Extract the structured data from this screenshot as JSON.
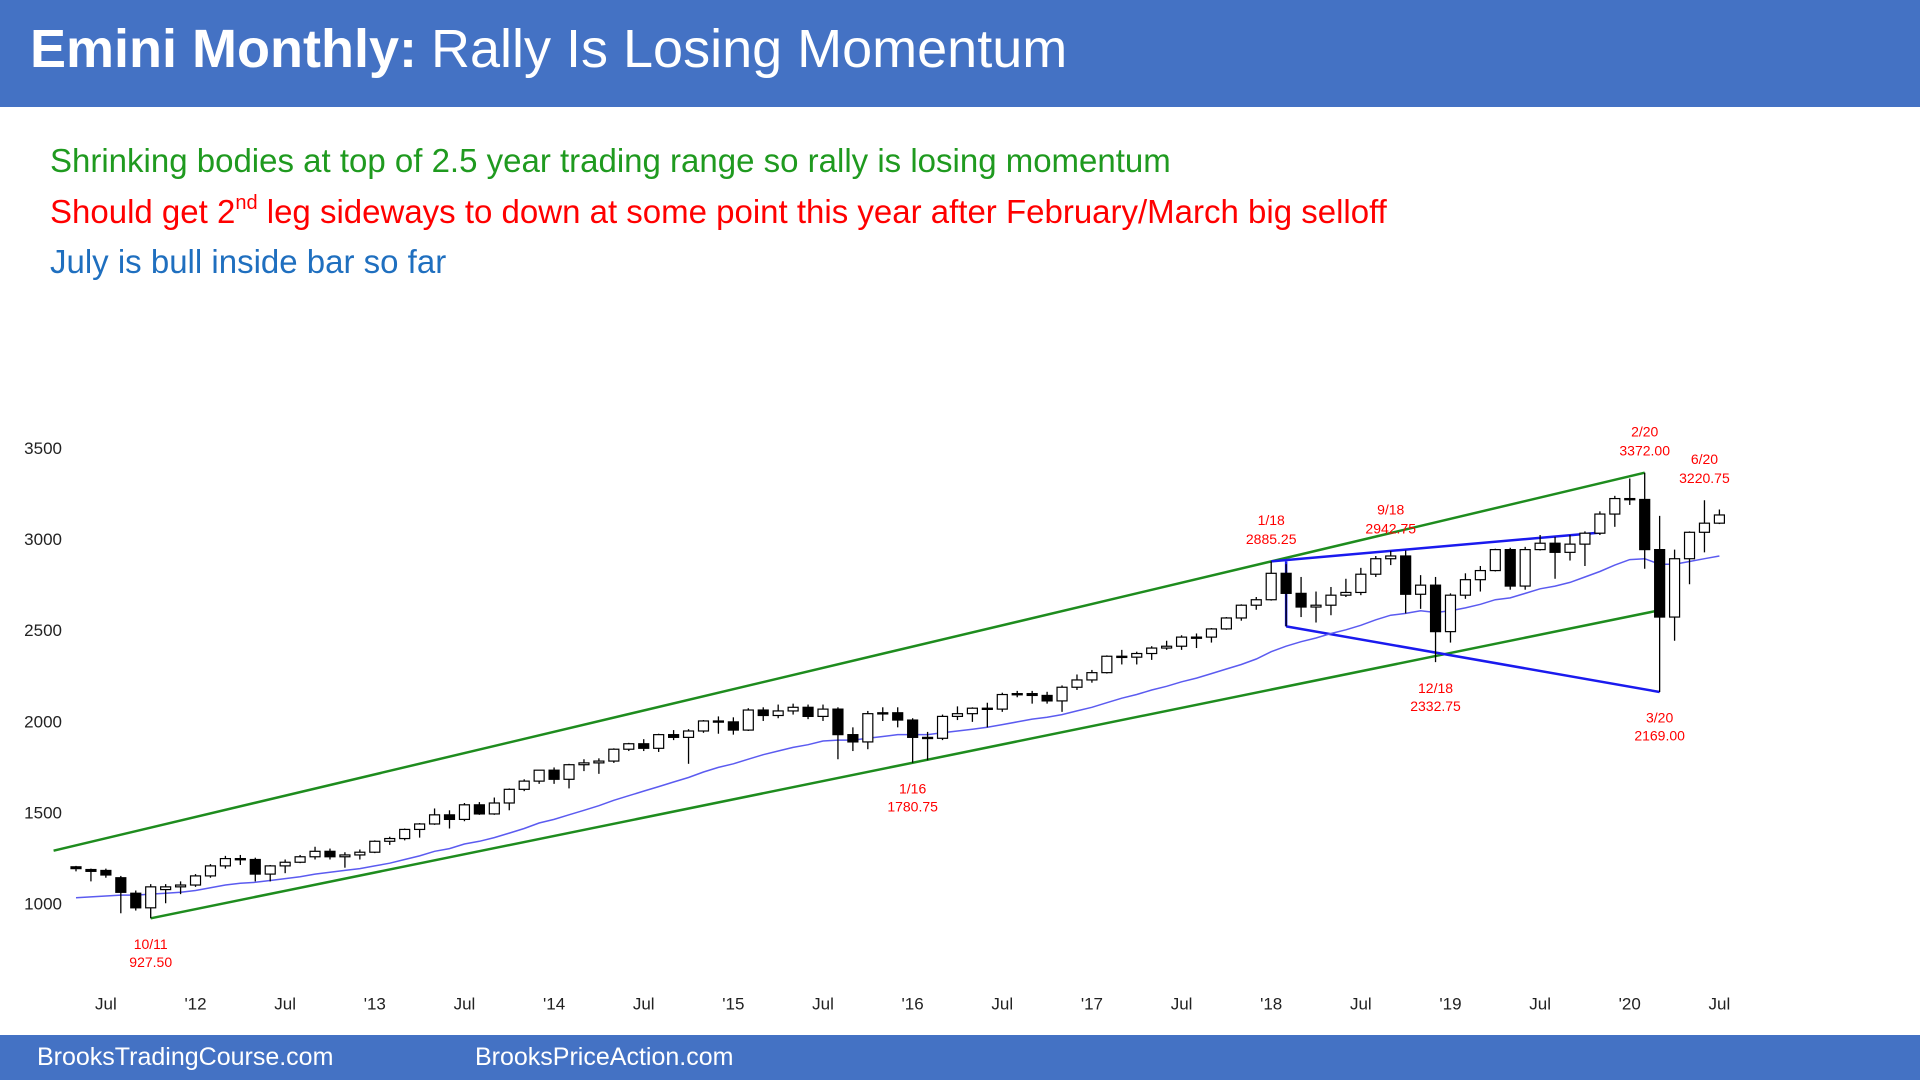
{
  "header": {
    "title_bold": "Emini Monthly:",
    "title": "Rally Is Losing Momentum"
  },
  "notes": [
    {
      "parts": [
        "Shrinking bodies at top of 2.5 year trading range so rally is losing momentum"
      ],
      "color": "#1f9a1f"
    },
    {
      "parts": [
        "Should get 2",
        "nd",
        " leg sideways to down at some point this year after February/March big selloff"
      ],
      "color": "#ff0000"
    },
    {
      "parts": [
        "July is bull inside bar so far"
      ],
      "color": "#1f6fbf"
    }
  ],
  "footer": {
    "left": "BrooksTradingCourse.com",
    "right": "BrooksPriceAction.com"
  },
  "chart_data": {
    "type": "candlestick",
    "categories": [
      null,
      null,
      "Jul",
      null,
      null,
      null,
      null,
      null,
      "'12",
      null,
      null,
      null,
      null,
      null,
      "Jul",
      null,
      null,
      null,
      null,
      null,
      "'13",
      null,
      null,
      null,
      null,
      null,
      "Jul",
      null,
      null,
      null,
      null,
      null,
      "'14",
      null,
      null,
      null,
      null,
      null,
      "Jul",
      null,
      null,
      null,
      null,
      null,
      "'15",
      null,
      null,
      null,
      null,
      null,
      "Jul",
      null,
      null,
      null,
      null,
      null,
      "'16",
      null,
      null,
      null,
      null,
      null,
      "Jul",
      null,
      null,
      null,
      null,
      null,
      "'17",
      null,
      null,
      null,
      null,
      null,
      "Jul",
      null,
      null,
      null,
      null,
      null,
      "'18",
      null,
      null,
      null,
      null,
      null,
      "Jul",
      null,
      null,
      null,
      null,
      null,
      "'19",
      null,
      null,
      null,
      null,
      null,
      "Jul",
      null,
      null,
      null,
      null,
      null,
      "'20",
      null,
      null,
      null,
      null,
      null,
      "Jul"
    ],
    "candles": {
      "open": [
        1210,
        1195,
        1190,
        1150,
        1065,
        985,
        1085,
        1100,
        1110,
        1160,
        1215,
        1255,
        1250,
        1170,
        1215,
        1235,
        1265,
        1295,
        1265,
        1275,
        1290,
        1350,
        1365,
        1415,
        1445,
        1495,
        1470,
        1550,
        1500,
        1560,
        1635,
        1680,
        1740,
        1690,
        1770,
        1780,
        1790,
        1855,
        1885,
        1860,
        1935,
        1920,
        1955,
        2010,
        2005,
        1960,
        2070,
        2040,
        2065,
        2085,
        2035,
        2075,
        1935,
        1895,
        2050,
        2055,
        2015,
        1920,
        1915,
        2035,
        2050,
        2080,
        2075,
        2155,
        2160,
        2150,
        2120,
        2195,
        2235,
        2275,
        2365,
        2360,
        2380,
        2410,
        2420,
        2470,
        2470,
        2515,
        2575,
        2645,
        2675,
        2820,
        2710,
        2635,
        2645,
        2700,
        2715,
        2815,
        2900,
        2915,
        2705,
        2755,
        2500,
        2700,
        2785,
        2835,
        2950,
        2750,
        2950,
        2985,
        2935,
        2980,
        3040,
        3145,
        3230,
        3225,
        2950,
        2580,
        2900,
        3045,
        3095
      ],
      "high": [
        1215,
        1200,
        1200,
        1160,
        1080,
        1115,
        1115,
        1130,
        1170,
        1225,
        1270,
        1275,
        1260,
        1220,
        1250,
        1275,
        1320,
        1310,
        1290,
        1305,
        1355,
        1375,
        1420,
        1450,
        1530,
        1520,
        1560,
        1565,
        1590,
        1640,
        1690,
        1740,
        1755,
        1775,
        1800,
        1805,
        1860,
        1890,
        1910,
        1940,
        1960,
        1965,
        2015,
        2035,
        2030,
        2080,
        2085,
        2100,
        2105,
        2100,
        2100,
        2085,
        1975,
        2065,
        2085,
        2085,
        2025,
        1950,
        2045,
        2090,
        2085,
        2110,
        2165,
        2175,
        2175,
        2170,
        2205,
        2265,
        2290,
        2370,
        2400,
        2390,
        2420,
        2450,
        2480,
        2490,
        2520,
        2580,
        2650,
        2690,
        2885.25,
        2870,
        2800,
        2720,
        2745,
        2790,
        2850,
        2915,
        2942.75,
        2945,
        2810,
        2800,
        2710,
        2820,
        2860,
        2955,
        2960,
        2965,
        3030,
        3020,
        3030,
        3050,
        3160,
        3245,
        3340,
        3372,
        3135,
        2950,
        3050,
        3220.75,
        3170
      ],
      "low": [
        1185,
        1130,
        1150,
        955,
        970,
        927.5,
        1010,
        1060,
        1100,
        1150,
        1200,
        1220,
        1130,
        1130,
        1175,
        1230,
        1250,
        1250,
        1205,
        1250,
        1285,
        1330,
        1355,
        1370,
        1440,
        1420,
        1460,
        1495,
        1495,
        1520,
        1625,
        1665,
        1665,
        1640,
        1735,
        1720,
        1780,
        1845,
        1845,
        1840,
        1905,
        1775,
        1945,
        1940,
        1935,
        1955,
        2010,
        2025,
        2045,
        2020,
        2010,
        1800,
        1845,
        1855,
        2010,
        1975,
        1780.75,
        1795,
        1905,
        2015,
        2005,
        1975,
        2060,
        2140,
        2105,
        2105,
        2060,
        2180,
        2220,
        2270,
        2320,
        2320,
        2345,
        2400,
        2400,
        2410,
        2440,
        2510,
        2560,
        2620,
        2670,
        2529,
        2580,
        2550,
        2590,
        2690,
        2700,
        2800,
        2865,
        2600,
        2625,
        2332.75,
        2440,
        2680,
        2720,
        2830,
        2730,
        2730,
        2945,
        2790,
        2890,
        2860,
        3030,
        3075,
        3195,
        2845,
        2169,
        2450,
        2760,
        2935,
        3090
      ],
      "close": [
        1200,
        1185,
        1165,
        1070,
        985,
        1100,
        1100,
        1110,
        1160,
        1215,
        1255,
        1250,
        1170,
        1215,
        1235,
        1265,
        1295,
        1265,
        1275,
        1290,
        1350,
        1365,
        1415,
        1445,
        1495,
        1470,
        1550,
        1500,
        1560,
        1635,
        1680,
        1740,
        1690,
        1770,
        1780,
        1790,
        1855,
        1885,
        1860,
        1935,
        1920,
        1955,
        2010,
        2005,
        1960,
        2070,
        2040,
        2065,
        2085,
        2035,
        2075,
        1935,
        1895,
        2050,
        2055,
        2015,
        1920,
        1915,
        2035,
        2050,
        2080,
        2075,
        2155,
        2160,
        2150,
        2120,
        2195,
        2235,
        2275,
        2365,
        2360,
        2380,
        2410,
        2420,
        2470,
        2470,
        2515,
        2575,
        2645,
        2675,
        2820,
        2710,
        2635,
        2645,
        2700,
        2715,
        2815,
        2900,
        2915,
        2705,
        2755,
        2500,
        2700,
        2785,
        2835,
        2950,
        2750,
        2950,
        2985,
        2935,
        2980,
        3040,
        3145,
        3230,
        3225,
        2950,
        2580,
        2900,
        3045,
        3095,
        3140
      ]
    },
    "moving_average": {
      "color": "#5b5bf0",
      "values": [
        1040,
        1045,
        1050,
        1055,
        1055,
        1060,
        1065,
        1070,
        1080,
        1095,
        1110,
        1120,
        1125,
        1135,
        1145,
        1155,
        1170,
        1180,
        1190,
        1200,
        1215,
        1230,
        1250,
        1270,
        1295,
        1310,
        1335,
        1350,
        1370,
        1395,
        1420,
        1450,
        1470,
        1495,
        1520,
        1545,
        1575,
        1600,
        1625,
        1650,
        1675,
        1700,
        1730,
        1755,
        1775,
        1800,
        1825,
        1845,
        1865,
        1880,
        1900,
        1905,
        1905,
        1915,
        1925,
        1935,
        1935,
        1935,
        1945,
        1955,
        1965,
        1975,
        1990,
        2005,
        2020,
        2030,
        2045,
        2065,
        2085,
        2110,
        2135,
        2155,
        2180,
        2200,
        2225,
        2245,
        2270,
        2295,
        2320,
        2350,
        2390,
        2420,
        2445,
        2465,
        2490,
        2510,
        2535,
        2565,
        2590,
        2600,
        2615,
        2605,
        2615,
        2630,
        2650,
        2675,
        2685,
        2710,
        2735,
        2750,
        2770,
        2800,
        2830,
        2865,
        2895,
        2900,
        2870,
        2870,
        2885,
        2900,
        2915
      ]
    },
    "annotations": [
      {
        "date": "10/11",
        "price": {
          "value": 927.5,
          "label": "927.50"
        }
      },
      {
        "date": "1/16",
        "price": {
          "value": 1780.75,
          "label": "1780.75"
        }
      },
      {
        "date": "1/18",
        "price": {
          "value": 2885.25,
          "label": "2885.25"
        }
      },
      {
        "date": "9/18",
        "price": {
          "value": 2942.75,
          "label": "2942.75"
        }
      },
      {
        "date": "12/18",
        "price": {
          "value": 2332.75,
          "label": "2332.75"
        }
      },
      {
        "date": "2/20",
        "price": {
          "value": 3372,
          "label": "3372.00"
        }
      },
      {
        "date": "3/20",
        "price": {
          "value": 2169,
          "label": "2169.00"
        }
      },
      {
        "date": "6/20",
        "price": {
          "value": 3220.75,
          "label": "3220.75"
        }
      }
    ],
    "annotation_color": "#ff0000",
    "channel_color": "#1e8c1e",
    "wedge_color": "#1a1aee",
    "ylim": [
      600,
      3650
    ],
    "yticks": [
      1000,
      1500,
      2000,
      2500,
      3000,
      3500
    ]
  }
}
